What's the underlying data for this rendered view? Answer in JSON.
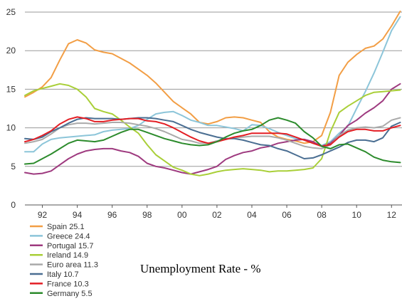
{
  "caption": "Unemployment Rate - %",
  "chart_data": {
    "type": "line",
    "title": "",
    "xlabel": "",
    "ylabel": "",
    "xlim": [
      1991,
      2012.6
    ],
    "ylim": [
      0,
      25
    ],
    "y_ticks": [
      0,
      5,
      10,
      15,
      20,
      25
    ],
    "x_ticks": [
      1992,
      1994,
      1996,
      1998,
      2000,
      2002,
      2004,
      2006,
      2008,
      2010,
      2012
    ],
    "x_tick_labels": [
      "92",
      "94",
      "96",
      "98",
      "00",
      "02",
      "04",
      "06",
      "08",
      "10",
      "12"
    ],
    "grid": "horizontal",
    "legend_position": "bottom-left",
    "series": [
      {
        "name": "Spain 25.1",
        "color": "#F29E45",
        "x": [
          1991,
          1991.5,
          1992,
          1992.5,
          1993,
          1993.5,
          1994,
          1994.5,
          1995,
          1995.5,
          1996,
          1996.5,
          1997,
          1997.5,
          1998,
          1998.5,
          1999,
          1999.5,
          2000,
          2000.5,
          2001,
          2001.5,
          2002,
          2002.5,
          2003,
          2003.5,
          2004,
          2004.5,
          2005,
          2005.5,
          2006,
          2006.5,
          2007,
          2007.5,
          2008,
          2008.5,
          2009,
          2009.5,
          2010,
          2010.5,
          2011,
          2011.5,
          2012,
          2012.5
        ],
        "y": [
          14,
          14.6,
          15.3,
          16.5,
          18.8,
          20.9,
          21.4,
          21.0,
          20.1,
          19.8,
          19.6,
          19.0,
          18.4,
          17.6,
          16.8,
          15.8,
          14.6,
          13.4,
          12.6,
          11.8,
          10.7,
          10.5,
          10.8,
          11.3,
          11.4,
          11.3,
          11.0,
          10.7,
          9.5,
          8.8,
          8.5,
          8.3,
          8.0,
          8.2,
          9.0,
          12.0,
          16.8,
          18.5,
          19.5,
          20.3,
          20.6,
          21.5,
          23.2,
          25.1
        ]
      },
      {
        "name": "Greece 24.4",
        "color": "#8CC5D9",
        "x": [
          1991,
          1991.5,
          1992,
          1992.5,
          1993,
          1993.5,
          1994,
          1994.5,
          1995,
          1995.5,
          1996,
          1996.5,
          1997,
          1997.5,
          1998,
          1998.5,
          1999,
          1999.5,
          2000,
          2000.5,
          2001,
          2001.5,
          2002,
          2002.5,
          2003,
          2003.5,
          2004,
          2004.5,
          2005,
          2005.5,
          2006,
          2006.5,
          2007,
          2007.5,
          2008,
          2008.5,
          2009,
          2009.5,
          2010,
          2010.5,
          2011,
          2011.5,
          2012,
          2012.5
        ],
        "y": [
          6.9,
          6.9,
          7.9,
          8.5,
          8.7,
          8.8,
          8.9,
          9.0,
          9.1,
          9.5,
          9.7,
          9.8,
          9.9,
          10.3,
          11.1,
          11.8,
          12.0,
          12.1,
          11.6,
          11.0,
          10.7,
          10.3,
          10.3,
          10.1,
          9.9,
          9.6,
          10.4,
          10.3,
          9.9,
          9.4,
          9.0,
          8.6,
          8.5,
          8.0,
          7.7,
          8.2,
          9.3,
          10.2,
          12.5,
          14.7,
          17.1,
          19.8,
          22.6,
          24.4
        ]
      },
      {
        "name": "Portugal 15.7",
        "color": "#9E3A7F",
        "x": [
          1991,
          1991.5,
          1992,
          1992.5,
          1993,
          1993.5,
          1994,
          1994.5,
          1995,
          1995.5,
          1996,
          1996.5,
          1997,
          1997.5,
          1998,
          1998.5,
          1999,
          1999.5,
          2000,
          2000.5,
          2001,
          2001.5,
          2002,
          2002.5,
          2003,
          2003.5,
          2004,
          2004.5,
          2005,
          2005.5,
          2006,
          2006.5,
          2007,
          2007.5,
          2008,
          2008.5,
          2009,
          2009.5,
          2010,
          2010.5,
          2011,
          2011.5,
          2012,
          2012.5
        ],
        "y": [
          4.2,
          4.0,
          4.1,
          4.4,
          5.2,
          6.0,
          6.6,
          7.0,
          7.2,
          7.3,
          7.3,
          7.0,
          6.8,
          6.3,
          5.4,
          5.0,
          4.8,
          4.5,
          4.2,
          4.0,
          4.3,
          4.6,
          5.0,
          5.9,
          6.4,
          6.8,
          7.0,
          7.4,
          7.6,
          8.0,
          8.2,
          8.4,
          8.5,
          8.2,
          7.6,
          8.0,
          9.0,
          10.3,
          11.0,
          11.9,
          12.6,
          13.5,
          15.0,
          15.7
        ]
      },
      {
        "name": "Ireland 14.9",
        "color": "#A9CF38",
        "x": [
          1991,
          1991.5,
          1992,
          1992.5,
          1993,
          1993.5,
          1994,
          1994.5,
          1995,
          1995.5,
          1996,
          1996.5,
          1997,
          1997.5,
          1998,
          1998.5,
          1999,
          1999.5,
          2000,
          2000.5,
          2001,
          2001.5,
          2002,
          2002.5,
          2003,
          2003.5,
          2004,
          2004.5,
          2005,
          2005.5,
          2006,
          2006.5,
          2007,
          2007.5,
          2008,
          2008.5,
          2009,
          2009.5,
          2010,
          2010.5,
          2011,
          2011.5,
          2012,
          2012.5
        ],
        "y": [
          14.2,
          14.8,
          15.1,
          15.4,
          15.7,
          15.5,
          15.0,
          14.0,
          12.5,
          12.1,
          11.8,
          11.0,
          10.1,
          9.3,
          7.8,
          6.5,
          5.7,
          4.9,
          4.5,
          4.0,
          3.8,
          4.0,
          4.3,
          4.5,
          4.6,
          4.7,
          4.6,
          4.5,
          4.3,
          4.4,
          4.4,
          4.5,
          4.6,
          4.8,
          6.0,
          9.5,
          12.0,
          12.8,
          13.5,
          14.2,
          14.6,
          14.7,
          14.8,
          14.9
        ]
      },
      {
        "name": "Euro area 11.3",
        "color": "#AAAAAA",
        "x": [
          1991,
          1991.5,
          1992,
          1992.5,
          1993,
          1993.5,
          1994,
          1994.5,
          1995,
          1995.5,
          1996,
          1996.5,
          1997,
          1997.5,
          1998,
          1998.5,
          1999,
          1999.5,
          2000,
          2000.5,
          2001,
          2001.5,
          2002,
          2002.5,
          2003,
          2003.5,
          2004,
          2004.5,
          2005,
          2005.5,
          2006,
          2006.5,
          2007,
          2007.5,
          2008,
          2008.5,
          2009,
          2009.5,
          2010,
          2010.5,
          2011,
          2011.5,
          2012,
          2012.5
        ],
        "y": [
          8.0,
          8.2,
          8.5,
          9.2,
          10.0,
          10.4,
          10.6,
          10.6,
          10.5,
          10.6,
          10.7,
          10.7,
          10.6,
          10.4,
          10.2,
          9.9,
          9.5,
          9.0,
          8.5,
          8.3,
          8.0,
          8.0,
          8.3,
          8.5,
          8.7,
          8.8,
          8.9,
          8.9,
          8.9,
          8.7,
          8.4,
          8.0,
          7.6,
          7.4,
          7.3,
          7.8,
          9.0,
          9.7,
          10.0,
          10.1,
          10.0,
          10.2,
          11.0,
          11.3
        ]
      },
      {
        "name": "Italy 10.7",
        "color": "#4A6E92",
        "x": [
          1991,
          1991.5,
          1992,
          1992.5,
          1993,
          1993.5,
          1994,
          1994.5,
          1995,
          1995.5,
          1996,
          1996.5,
          1997,
          1997.5,
          1998,
          1998.5,
          1999,
          1999.5,
          2000,
          2000.5,
          2001,
          2001.5,
          2002,
          2002.5,
          2003,
          2003.5,
          2004,
          2004.5,
          2005,
          2005.5,
          2006,
          2006.5,
          2007,
          2007.5,
          2008,
          2008.5,
          2009,
          2009.5,
          2010,
          2010.5,
          2011,
          2011.5,
          2012,
          2012.5
        ],
        "y": [
          8.6,
          8.5,
          8.8,
          9.5,
          10.0,
          10.6,
          11.1,
          11.3,
          11.2,
          11.2,
          11.2,
          11.1,
          11.2,
          11.3,
          11.3,
          11.2,
          11.0,
          10.8,
          10.3,
          9.8,
          9.4,
          9.1,
          8.8,
          8.6,
          8.6,
          8.4,
          8.1,
          7.8,
          7.7,
          7.3,
          7.0,
          6.5,
          6.0,
          6.1,
          6.5,
          7.0,
          7.5,
          8.1,
          8.4,
          8.4,
          8.2,
          8.7,
          10.2,
          10.7
        ]
      },
      {
        "name": "France 10.3",
        "color": "#E31E24",
        "x": [
          1991,
          1991.5,
          1992,
          1992.5,
          1993,
          1993.5,
          1994,
          1994.5,
          1995,
          1995.5,
          1996,
          1996.5,
          1997,
          1997.5,
          1998,
          1998.5,
          1999,
          1999.5,
          2000,
          2000.5,
          2001,
          2001.5,
          2002,
          2002.5,
          2003,
          2003.5,
          2004,
          2004.5,
          2005,
          2005.5,
          2006,
          2006.5,
          2007,
          2007.5,
          2008,
          2008.5,
          2009,
          2009.5,
          2010,
          2010.5,
          2011,
          2011.5,
          2012,
          2012.5
        ],
        "y": [
          8.2,
          8.5,
          9.0,
          9.6,
          10.5,
          11.1,
          11.4,
          11.2,
          10.8,
          10.8,
          11.0,
          11.1,
          11.2,
          11.2,
          10.9,
          10.8,
          10.5,
          10.0,
          9.4,
          8.8,
          8.3,
          8.0,
          8.2,
          8.5,
          8.8,
          9.0,
          9.3,
          9.3,
          9.3,
          9.3,
          9.2,
          8.8,
          8.4,
          8.0,
          7.6,
          7.8,
          8.8,
          9.5,
          9.8,
          9.8,
          9.6,
          9.6,
          10.0,
          10.3
        ]
      },
      {
        "name": "Germany 5.5",
        "color": "#2C8B2C",
        "x": [
          1991,
          1991.5,
          1992,
          1992.5,
          1993,
          1993.5,
          1994,
          1994.5,
          1995,
          1995.5,
          1996,
          1996.5,
          1997,
          1997.5,
          1998,
          1998.5,
          1999,
          1999.5,
          2000,
          2000.5,
          2001,
          2001.5,
          2002,
          2002.5,
          2003,
          2003.5,
          2004,
          2004.5,
          2005,
          2005.5,
          2006,
          2006.5,
          2007,
          2007.5,
          2008,
          2008.5,
          2009,
          2009.5,
          2010,
          2010.5,
          2011,
          2011.5,
          2012,
          2012.5
        ],
        "y": [
          5.3,
          5.4,
          6.0,
          6.6,
          7.3,
          8.0,
          8.4,
          8.3,
          8.2,
          8.4,
          8.9,
          9.4,
          9.8,
          9.8,
          9.4,
          9.0,
          8.6,
          8.3,
          8.0,
          7.8,
          7.7,
          7.8,
          8.2,
          8.8,
          9.3,
          9.6,
          9.8,
          10.3,
          11.0,
          11.3,
          11.0,
          10.6,
          9.5,
          8.7,
          7.6,
          7.3,
          7.8,
          7.9,
          7.4,
          6.9,
          6.2,
          5.8,
          5.6,
          5.5
        ]
      }
    ]
  }
}
